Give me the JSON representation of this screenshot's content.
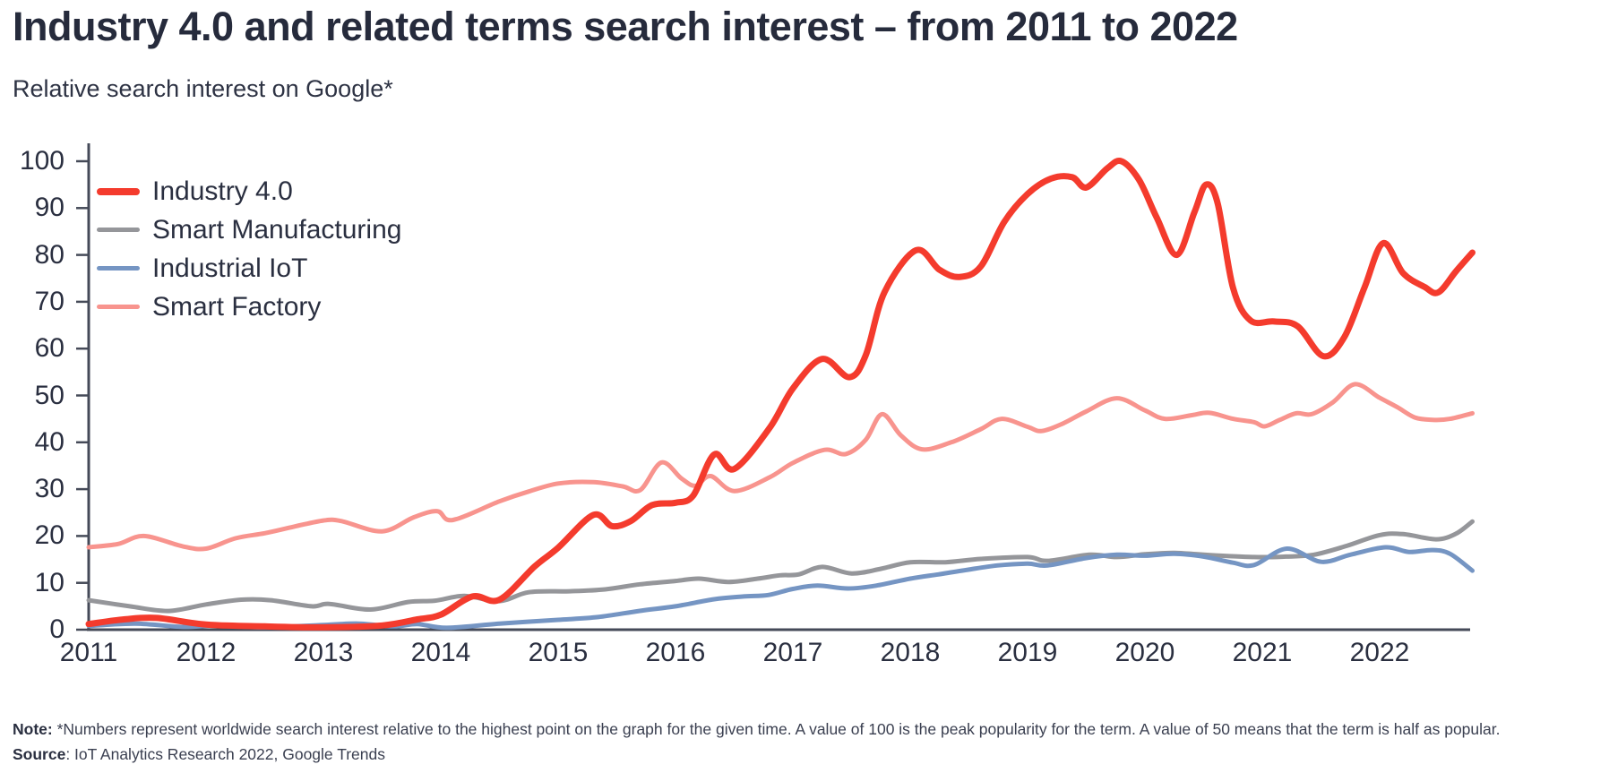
{
  "header": {
    "title": "Industry 4.0 and related terms search interest – from 2011 to 2022",
    "subtitle": "Relative search interest on Google*"
  },
  "footer": {
    "note_label": "Note:",
    "note_text": " *Numbers represent worldwide search interest relative to the highest point on the graph for the given time. A value of 100 is the peak popularity for the term. A value of 50 means that the term is half as popular.",
    "source_label": "Source",
    "source_text": ": IoT Analytics Research 2022, Google Trends"
  },
  "chart_data": {
    "type": "line",
    "title": "Industry 4.0 and related terms search interest – from 2011 to 2022",
    "subtitle": "Relative search interest on Google*",
    "grid": false,
    "legend_position": "top-left",
    "colors": {
      "text": "#2a2f40",
      "axis": "#454a58"
    },
    "x_axis": {
      "label": "",
      "range": [
        2011,
        2022.83
      ],
      "ticks": [
        2011,
        2012,
        2013,
        2014,
        2015,
        2016,
        2017,
        2018,
        2019,
        2020,
        2021,
        2022
      ]
    },
    "y_axis": {
      "label": "",
      "range": [
        0,
        100
      ],
      "ticks": [
        0,
        10,
        20,
        30,
        40,
        50,
        60,
        70,
        80,
        90,
        100
      ]
    },
    "series": [
      {
        "name": "Smart Manufacturing",
        "color": "#95969a",
        "width": 5,
        "points": [
          [
            2011.0,
            6.3
          ],
          [
            2011.35,
            5.0
          ],
          [
            2011.68,
            4.0
          ],
          [
            2012.0,
            5.4
          ],
          [
            2012.3,
            6.4
          ],
          [
            2012.55,
            6.3
          ],
          [
            2012.9,
            5.0
          ],
          [
            2013.05,
            5.5
          ],
          [
            2013.4,
            4.3
          ],
          [
            2013.72,
            5.9
          ],
          [
            2013.95,
            6.2
          ],
          [
            2014.2,
            7.2
          ],
          [
            2014.5,
            6.1
          ],
          [
            2014.75,
            8.0
          ],
          [
            2015.1,
            8.2
          ],
          [
            2015.4,
            8.6
          ],
          [
            2015.7,
            9.7
          ],
          [
            2016.0,
            10.4
          ],
          [
            2016.2,
            10.9
          ],
          [
            2016.45,
            10.2
          ],
          [
            2016.7,
            10.9
          ],
          [
            2016.89,
            11.6
          ],
          [
            2017.05,
            11.8
          ],
          [
            2017.25,
            13.4
          ],
          [
            2017.5,
            12.0
          ],
          [
            2017.75,
            13.0
          ],
          [
            2018.0,
            14.4
          ],
          [
            2018.3,
            14.4
          ],
          [
            2018.6,
            15.1
          ],
          [
            2019.0,
            15.5
          ],
          [
            2019.17,
            14.7
          ],
          [
            2019.53,
            16.0
          ],
          [
            2019.76,
            15.5
          ],
          [
            2020.0,
            16.1
          ],
          [
            2020.25,
            16.4
          ],
          [
            2020.5,
            16.0
          ],
          [
            2020.93,
            15.5
          ],
          [
            2021.2,
            15.6
          ],
          [
            2021.44,
            16.0
          ],
          [
            2021.72,
            17.9
          ],
          [
            2022.0,
            20.2
          ],
          [
            2022.2,
            20.4
          ],
          [
            2022.48,
            19.3
          ],
          [
            2022.65,
            20.5
          ],
          [
            2022.79,
            23.1
          ]
        ]
      },
      {
        "name": "Industrial IoT",
        "color": "#7595c3",
        "width": 5,
        "points": [
          [
            2011.0,
            0.8
          ],
          [
            2011.4,
            1.3
          ],
          [
            2011.8,
            0.6
          ],
          [
            2012.1,
            0.9
          ],
          [
            2012.5,
            0.5
          ],
          [
            2013.0,
            1.0
          ],
          [
            2013.3,
            1.3
          ],
          [
            2013.6,
            0.7
          ],
          [
            2013.8,
            1.2
          ],
          [
            2014.05,
            0.4
          ],
          [
            2014.5,
            1.3
          ],
          [
            2015.0,
            2.1
          ],
          [
            2015.34,
            2.7
          ],
          [
            2015.69,
            4.0
          ],
          [
            2016.0,
            5.0
          ],
          [
            2016.33,
            6.5
          ],
          [
            2016.58,
            7.1
          ],
          [
            2016.79,
            7.4
          ],
          [
            2017.0,
            8.7
          ],
          [
            2017.21,
            9.4
          ],
          [
            2017.47,
            8.8
          ],
          [
            2017.71,
            9.4
          ],
          [
            2018.0,
            10.9
          ],
          [
            2018.24,
            11.8
          ],
          [
            2018.49,
            12.8
          ],
          [
            2018.74,
            13.7
          ],
          [
            2019.0,
            14.1
          ],
          [
            2019.17,
            13.7
          ],
          [
            2019.5,
            15.3
          ],
          [
            2019.76,
            16.0
          ],
          [
            2020.0,
            15.8
          ],
          [
            2020.25,
            16.2
          ],
          [
            2020.5,
            15.6
          ],
          [
            2020.75,
            14.3
          ],
          [
            2020.93,
            13.8
          ],
          [
            2021.21,
            17.3
          ],
          [
            2021.5,
            14.5
          ],
          [
            2021.75,
            16.0
          ],
          [
            2022.05,
            17.6
          ],
          [
            2022.25,
            16.6
          ],
          [
            2022.45,
            17.0
          ],
          [
            2022.6,
            16.2
          ],
          [
            2022.79,
            12.6
          ]
        ]
      },
      {
        "name": "Smart Factory",
        "color": "#f8948e",
        "width": 5,
        "points": [
          [
            2011.0,
            17.6
          ],
          [
            2011.25,
            18.3
          ],
          [
            2011.47,
            20.0
          ],
          [
            2011.8,
            17.8
          ],
          [
            2012.0,
            17.3
          ],
          [
            2012.25,
            19.5
          ],
          [
            2012.5,
            20.6
          ],
          [
            2012.75,
            22.0
          ],
          [
            2013.0,
            23.3
          ],
          [
            2013.15,
            23.2
          ],
          [
            2013.5,
            21.0
          ],
          [
            2013.77,
            24.0
          ],
          [
            2013.97,
            25.3
          ],
          [
            2014.1,
            23.4
          ],
          [
            2014.5,
            27.4
          ],
          [
            2014.75,
            29.5
          ],
          [
            2015.0,
            31.2
          ],
          [
            2015.3,
            31.5
          ],
          [
            2015.55,
            30.6
          ],
          [
            2015.7,
            29.8
          ],
          [
            2015.88,
            35.7
          ],
          [
            2016.05,
            32.3
          ],
          [
            2016.17,
            30.7
          ],
          [
            2016.3,
            32.8
          ],
          [
            2016.5,
            29.6
          ],
          [
            2016.8,
            32.5
          ],
          [
            2017.0,
            35.6
          ],
          [
            2017.27,
            38.4
          ],
          [
            2017.45,
            37.5
          ],
          [
            2017.62,
            40.5
          ],
          [
            2017.76,
            46.0
          ],
          [
            2017.92,
            41.5
          ],
          [
            2018.1,
            38.5
          ],
          [
            2018.35,
            40.0
          ],
          [
            2018.6,
            42.8
          ],
          [
            2018.78,
            45.0
          ],
          [
            2019.0,
            43.3
          ],
          [
            2019.12,
            42.4
          ],
          [
            2019.3,
            44.0
          ],
          [
            2019.5,
            46.6
          ],
          [
            2019.76,
            49.4
          ],
          [
            2020.0,
            46.8
          ],
          [
            2020.17,
            45.0
          ],
          [
            2020.4,
            45.8
          ],
          [
            2020.55,
            46.3
          ],
          [
            2020.75,
            45.0
          ],
          [
            2020.93,
            44.3
          ],
          [
            2021.02,
            43.4
          ],
          [
            2021.15,
            44.8
          ],
          [
            2021.29,
            46.2
          ],
          [
            2021.42,
            46.0
          ],
          [
            2021.6,
            48.5
          ],
          [
            2021.79,
            52.4
          ],
          [
            2022.0,
            49.5
          ],
          [
            2022.15,
            47.5
          ],
          [
            2022.3,
            45.3
          ],
          [
            2022.45,
            44.8
          ],
          [
            2022.6,
            45.0
          ],
          [
            2022.79,
            46.2
          ]
        ]
      },
      {
        "name": "Industry 4.0",
        "color": "#f43b2d",
        "width": 7,
        "points": [
          [
            2011.0,
            1.2
          ],
          [
            2011.3,
            2.2
          ],
          [
            2011.58,
            2.5
          ],
          [
            2012.0,
            1.1
          ],
          [
            2012.5,
            0.7
          ],
          [
            2013.0,
            0.5
          ],
          [
            2013.5,
            0.9
          ],
          [
            2013.8,
            2.2
          ],
          [
            2014.0,
            3.2
          ],
          [
            2014.27,
            7.1
          ],
          [
            2014.5,
            6.4
          ],
          [
            2014.8,
            13.5
          ],
          [
            2015.0,
            17.5
          ],
          [
            2015.3,
            24.5
          ],
          [
            2015.46,
            22.1
          ],
          [
            2015.62,
            23.2
          ],
          [
            2015.8,
            26.6
          ],
          [
            2016.0,
            27.1
          ],
          [
            2016.15,
            28.6
          ],
          [
            2016.33,
            37.4
          ],
          [
            2016.5,
            34.3
          ],
          [
            2016.8,
            43.0
          ],
          [
            2017.0,
            51.5
          ],
          [
            2017.25,
            57.8
          ],
          [
            2017.48,
            53.9
          ],
          [
            2017.62,
            58.5
          ],
          [
            2017.78,
            72.0
          ],
          [
            2018.05,
            81.0
          ],
          [
            2018.25,
            76.8
          ],
          [
            2018.42,
            75.3
          ],
          [
            2018.6,
            77.5
          ],
          [
            2018.8,
            87.0
          ],
          [
            2019.0,
            93.0
          ],
          [
            2019.2,
            96.3
          ],
          [
            2019.38,
            96.6
          ],
          [
            2019.5,
            94.4
          ],
          [
            2019.68,
            98.5
          ],
          [
            2019.8,
            100.0
          ],
          [
            2019.95,
            96.0
          ],
          [
            2020.1,
            88.0
          ],
          [
            2020.27,
            80.0
          ],
          [
            2020.42,
            89.0
          ],
          [
            2020.52,
            95.0
          ],
          [
            2020.62,
            91.0
          ],
          [
            2020.75,
            73.0
          ],
          [
            2020.9,
            66.0
          ],
          [
            2021.1,
            65.8
          ],
          [
            2021.3,
            64.8
          ],
          [
            2021.52,
            58.4
          ],
          [
            2021.7,
            62.5
          ],
          [
            2021.87,
            73.0
          ],
          [
            2022.03,
            82.5
          ],
          [
            2022.2,
            76.1
          ],
          [
            2022.38,
            73.2
          ],
          [
            2022.5,
            72.0
          ],
          [
            2022.65,
            76.5
          ],
          [
            2022.79,
            80.5
          ]
        ]
      }
    ],
    "legend_order": [
      3,
      0,
      1,
      2
    ]
  }
}
